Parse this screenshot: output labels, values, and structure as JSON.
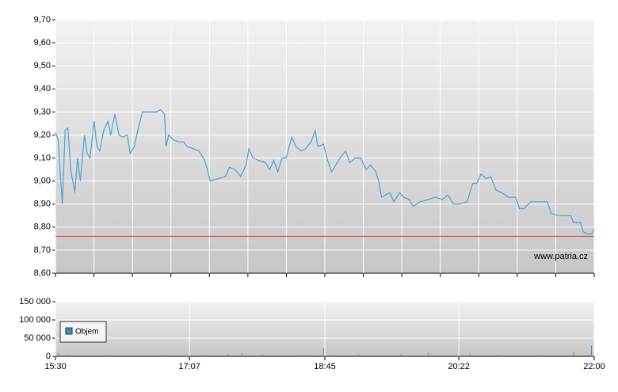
{
  "chart_data": [
    {
      "type": "line",
      "x": [
        "15:30",
        "15:32",
        "15:33",
        "15:35",
        "15:37",
        "15:39",
        "15:41",
        "15:44",
        "15:46",
        "15:48",
        "15:51",
        "15:53",
        "15:55",
        "15:58",
        "16:00",
        "16:02",
        "16:05",
        "16:08",
        "16:10",
        "16:13",
        "16:16",
        "16:19",
        "16:22",
        "16:24",
        "16:27",
        "16:30",
        "16:33",
        "16:39",
        "16:43",
        "16:46",
        "16:49",
        "16:50",
        "16:52",
        "16:55",
        "16:59",
        "17:03",
        "17:05",
        "17:10",
        "17:14",
        "17:18",
        "17:20",
        "17:22",
        "17:28",
        "17:33",
        "17:36",
        "17:40",
        "17:44",
        "17:48",
        "17:50",
        "17:53",
        "17:57",
        "18:02",
        "18:05",
        "18:08",
        "18:11",
        "18:14",
        "18:17",
        "18:21",
        "18:24",
        "18:28",
        "18:31",
        "18:35",
        "18:38",
        "18:40",
        "18:44",
        "18:47",
        "18:50",
        "18:53",
        "18:56",
        "19:00",
        "19:03",
        "19:07",
        "19:11",
        "19:15",
        "19:18",
        "19:22",
        "19:24",
        "19:26",
        "19:29",
        "19:32",
        "19:35",
        "19:39",
        "19:42",
        "19:46",
        "19:49",
        "19:54",
        "20:00",
        "20:05",
        "20:10",
        "20:14",
        "20:18",
        "20:22",
        "20:28",
        "20:32",
        "20:35",
        "20:38",
        "20:42",
        "20:45",
        "20:49",
        "20:53",
        "20:58",
        "21:03",
        "21:06",
        "21:09",
        "21:14",
        "21:19",
        "21:26",
        "21:29",
        "21:34",
        "21:43",
        "21:45",
        "21:50",
        "21:52",
        "21:55",
        "21:58",
        "22:00"
      ],
      "series": [
        {
          "color": "#4aa3d0",
          "values": [
            9.21,
            9.18,
            9.08,
            8.9,
            9.22,
            9.23,
            9.05,
            8.95,
            9.1,
            9.0,
            9.2,
            9.12,
            9.1,
            9.26,
            9.15,
            9.13,
            9.22,
            9.26,
            9.2,
            9.29,
            9.2,
            9.19,
            9.2,
            9.12,
            9.15,
            9.23,
            9.3,
            9.3,
            9.3,
            9.31,
            9.29,
            9.15,
            9.2,
            9.18,
            9.17,
            9.17,
            9.15,
            9.14,
            9.13,
            9.09,
            9.05,
            9.0,
            9.01,
            9.02,
            9.06,
            9.05,
            9.02,
            9.07,
            9.14,
            9.1,
            9.09,
            9.08,
            9.05,
            9.09,
            9.04,
            9.1,
            9.1,
            9.19,
            9.15,
            9.13,
            9.14,
            9.17,
            9.22,
            9.15,
            9.16,
            9.09,
            9.04,
            9.07,
            9.1,
            9.13,
            9.08,
            9.1,
            9.1,
            9.05,
            9.07,
            9.04,
            9.0,
            8.93,
            8.94,
            8.95,
            8.91,
            8.95,
            8.93,
            8.92,
            8.89,
            8.91,
            8.92,
            8.93,
            8.92,
            8.94,
            8.9,
            8.9,
            8.91,
            8.99,
            8.99,
            9.03,
            9.01,
            9.02,
            8.96,
            8.95,
            8.93,
            8.93,
            8.88,
            8.88,
            8.91,
            8.91,
            8.91,
            8.86,
            8.85,
            8.85,
            8.82,
            8.82,
            8.78,
            8.77,
            8.77,
            8.79
          ]
        }
      ],
      "reference_line": 8.76,
      "reference_color": "#d05050",
      "xlim": [
        "15:30",
        "22:00"
      ],
      "ylim": [
        8.6,
        9.7
      ],
      "yticks": [
        {
          "value": 8.6,
          "label": "8,60"
        },
        {
          "value": 8.7,
          "label": "8,70"
        },
        {
          "value": 8.8,
          "label": "8,80"
        },
        {
          "value": 8.9,
          "label": "8,90"
        },
        {
          "value": 9.0,
          "label": "9,00"
        },
        {
          "value": 9.1,
          "label": "9,10"
        },
        {
          "value": 9.2,
          "label": "9,20"
        },
        {
          "value": 9.3,
          "label": "9,30"
        },
        {
          "value": 9.4,
          "label": "9,40"
        },
        {
          "value": 9.5,
          "label": "9,50"
        },
        {
          "value": 9.6,
          "label": "9,60"
        },
        {
          "value": 9.7,
          "label": "9,70"
        }
      ],
      "annotation": "www.patria.cz",
      "grid": true
    },
    {
      "type": "bar",
      "x": [
        "15:32",
        "15:40",
        "16:10",
        "16:50",
        "17:20",
        "17:35",
        "17:45",
        "18:00",
        "18:30",
        "18:44",
        "18:50",
        "19:10",
        "19:40",
        "20:00",
        "20:30",
        "20:50",
        "21:20",
        "21:45",
        "21:58"
      ],
      "series": [
        {
          "name": "Objem",
          "color": "#3d8fc4",
          "values": [
            8000,
            5000,
            3000,
            4000,
            3000,
            6000,
            9000,
            5000,
            4000,
            22000,
            4000,
            5000,
            6000,
            10000,
            7000,
            5000,
            4000,
            12000,
            30000
          ]
        }
      ],
      "xlim": [
        "15:30",
        "22:00"
      ],
      "xticks": [
        "15:30",
        "17:07",
        "18:45",
        "20:22",
        "22:00"
      ],
      "ylim": [
        0,
        150000
      ],
      "yticks": [
        0,
        {
          "value": 50000,
          "label": "50 000"
        },
        {
          "value": 100000,
          "label": "100 000"
        },
        {
          "value": 150000,
          "label": "150 000"
        }
      ],
      "grid": true,
      "legend": "upper left"
    }
  ]
}
